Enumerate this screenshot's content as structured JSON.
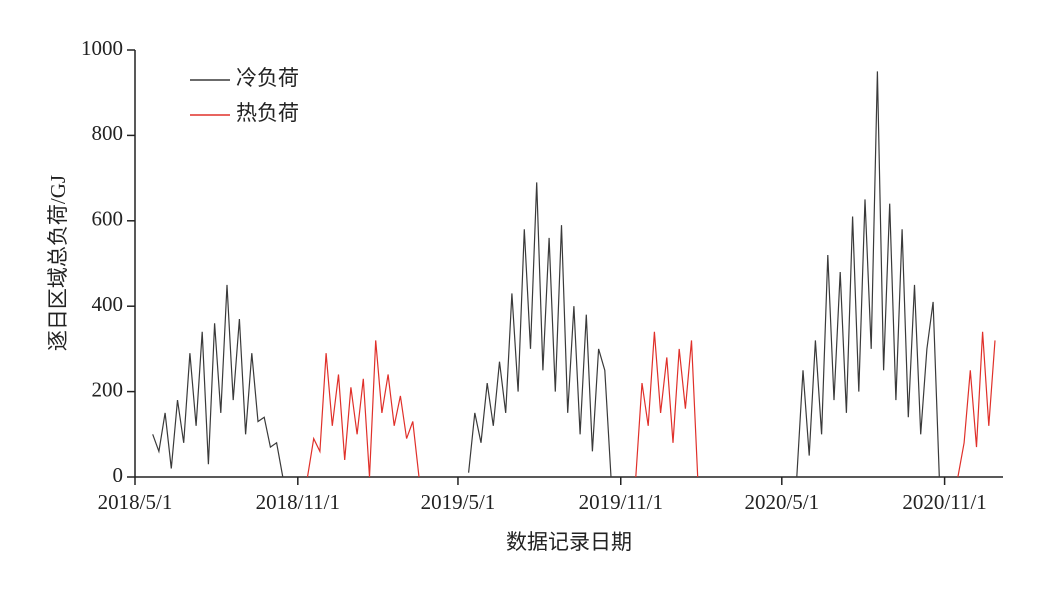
{
  "chart_data": {
    "type": "line",
    "x_label": "数据记录日期",
    "y_label": "逐日区域总负荷/GJ",
    "xlim": [
      "2018/5/1",
      "2021/1/6"
    ],
    "xticks": [
      "2018/5/1",
      "2018/11/1",
      "2019/5/1",
      "2019/11/1",
      "2020/5/1",
      "2020/11/1"
    ],
    "ylim": [
      0,
      1000
    ],
    "yticks": [
      0,
      200,
      400,
      600,
      800,
      1000
    ],
    "legend_position": "upper-left",
    "x": [
      "2018/5/21",
      "2018/5/28",
      "2018/6/4",
      "2018/6/11",
      "2018/6/18",
      "2018/6/25",
      "2018/7/2",
      "2018/7/9",
      "2018/7/16",
      "2018/7/23",
      "2018/7/30",
      "2018/8/6",
      "2018/8/13",
      "2018/8/20",
      "2018/8/27",
      "2018/9/3",
      "2018/9/10",
      "2018/9/17",
      "2018/9/24",
      "2018/10/1",
      "2018/10/8",
      "2018/10/15",
      "2018/10/22",
      "2018/10/29",
      "2018/11/5",
      "2018/11/12",
      "2018/11/19",
      "2018/11/26",
      "2018/12/3",
      "2018/12/10",
      "2018/12/17",
      "2018/12/24",
      "2018/12/31",
      "2019/1/7",
      "2019/1/14",
      "2019/1/21",
      "2019/1/28",
      "2019/2/4",
      "2019/2/11",
      "2019/2/18",
      "2019/2/25",
      "2019/3/4",
      "2019/3/11",
      "2019/3/18",
      "2019/3/25",
      "2019/4/1",
      "2019/4/8",
      "2019/4/15",
      "2019/4/22",
      "2019/4/29",
      "2019/5/6",
      "2019/5/13",
      "2019/5/20",
      "2019/5/27",
      "2019/6/3",
      "2019/6/10",
      "2019/6/17",
      "2019/6/24",
      "2019/7/1",
      "2019/7/8",
      "2019/7/15",
      "2019/7/22",
      "2019/7/29",
      "2019/8/5",
      "2019/8/12",
      "2019/8/19",
      "2019/8/26",
      "2019/9/2",
      "2019/9/9",
      "2019/9/16",
      "2019/9/23",
      "2019/9/30",
      "2019/10/7",
      "2019/10/14",
      "2019/10/21",
      "2019/10/28",
      "2019/11/4",
      "2019/11/11",
      "2019/11/18",
      "2019/11/25",
      "2019/12/2",
      "2019/12/9",
      "2019/12/16",
      "2019/12/23",
      "2019/12/30",
      "2020/1/6",
      "2020/1/13",
      "2020/1/20",
      "2020/1/27",
      "2020/2/3",
      "2020/2/10",
      "2020/2/17",
      "2020/2/24",
      "2020/3/2",
      "2020/3/9",
      "2020/3/16",
      "2020/3/23",
      "2020/3/30",
      "2020/4/6",
      "2020/4/13",
      "2020/4/20",
      "2020/4/27",
      "2020/5/4",
      "2020/5/11",
      "2020/5/18",
      "2020/5/25",
      "2020/6/1",
      "2020/6/8",
      "2020/6/15",
      "2020/6/22",
      "2020/6/29",
      "2020/7/6",
      "2020/7/13",
      "2020/7/20",
      "2020/7/27",
      "2020/8/3",
      "2020/8/10",
      "2020/8/17",
      "2020/8/24",
      "2020/8/31",
      "2020/9/7",
      "2020/9/14",
      "2020/9/21",
      "2020/9/28",
      "2020/10/5",
      "2020/10/12",
      "2020/10/19",
      "2020/10/26",
      "2020/11/2",
      "2020/11/9",
      "2020/11/16",
      "2020/11/23",
      "2020/11/30",
      "2020/12/7",
      "2020/12/14",
      "2020/12/21",
      "2020/12/28"
    ],
    "series": [
      {
        "name": "冷负荷",
        "color": "#3a3a3a",
        "values": [
          100,
          60,
          150,
          20,
          180,
          80,
          290,
          120,
          340,
          30,
          360,
          150,
          450,
          180,
          370,
          100,
          290,
          130,
          140,
          70,
          80,
          0,
          null,
          null,
          null,
          null,
          null,
          null,
          null,
          null,
          null,
          null,
          null,
          null,
          null,
          null,
          null,
          null,
          null,
          null,
          null,
          null,
          null,
          null,
          null,
          null,
          null,
          null,
          null,
          null,
          null,
          10,
          150,
          80,
          220,
          120,
          270,
          150,
          430,
          200,
          580,
          300,
          690,
          250,
          560,
          200,
          590,
          150,
          400,
          100,
          380,
          60,
          300,
          250,
          0,
          null,
          null,
          null,
          null,
          null,
          null,
          null,
          null,
          null,
          null,
          null,
          null,
          null,
          null,
          null,
          null,
          null,
          null,
          null,
          null,
          null,
          null,
          null,
          null,
          null,
          null,
          null,
          null,
          null,
          0,
          250,
          50,
          320,
          100,
          520,
          180,
          480,
          150,
          610,
          200,
          650,
          300,
          950,
          250,
          640,
          180,
          580,
          140,
          450,
          100,
          300,
          410,
          0,
          null,
          null,
          null,
          null,
          null,
          null,
          null,
          null,
          null
        ]
      },
      {
        "name": "热负荷",
        "color": "#e0302a",
        "values": [
          null,
          null,
          null,
          null,
          null,
          null,
          null,
          null,
          null,
          null,
          null,
          null,
          null,
          null,
          null,
          null,
          null,
          null,
          null,
          null,
          null,
          null,
          null,
          null,
          null,
          0,
          90,
          60,
          290,
          120,
          240,
          40,
          210,
          100,
          230,
          0,
          320,
          150,
          240,
          120,
          190,
          90,
          130,
          0,
          null,
          null,
          null,
          null,
          null,
          null,
          null,
          null,
          null,
          null,
          null,
          null,
          null,
          null,
          null,
          null,
          null,
          null,
          null,
          null,
          null,
          null,
          null,
          null,
          null,
          null,
          null,
          null,
          null,
          null,
          null,
          null,
          null,
          null,
          0,
          220,
          120,
          340,
          150,
          280,
          80,
          300,
          160,
          320,
          0,
          null,
          null,
          null,
          null,
          null,
          null,
          null,
          null,
          null,
          null,
          null,
          null,
          null,
          null,
          null,
          null,
          null,
          null,
          null,
          null,
          null,
          null,
          null,
          null,
          null,
          null,
          null,
          null,
          null,
          null,
          null,
          null,
          null,
          null,
          null,
          null,
          null,
          null,
          null,
          null,
          null,
          0,
          80,
          250,
          70,
          340,
          120,
          320
        ]
      }
    ]
  }
}
